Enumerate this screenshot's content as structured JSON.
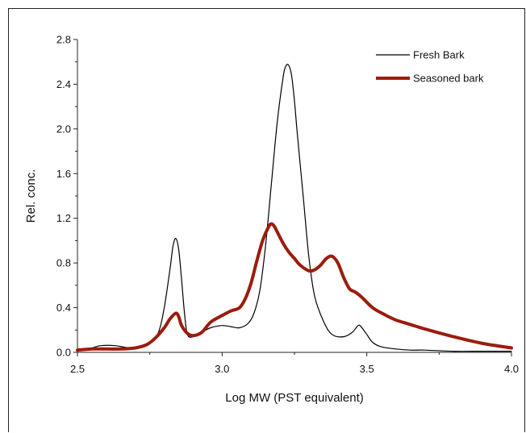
{
  "chart_data": {
    "type": "line",
    "xlabel": "Log MW (PST equivalent)",
    "ylabel": "Rel. conc.",
    "xlim": [
      2.5,
      4.0
    ],
    "ylim": [
      0.0,
      2.8
    ],
    "x_ticks": [
      "2.5",
      "3.0",
      "3.5",
      "4.0"
    ],
    "y_ticks": [
      "0.0",
      "0.4",
      "0.8",
      "1.2",
      "1.6",
      "2.0",
      "2.4",
      "2.8"
    ],
    "grid": false,
    "legend_position": "top-right",
    "series": [
      {
        "name": "Fresh Bark",
        "color": "#000000",
        "x": [
          2.5,
          2.55,
          2.58,
          2.63,
          2.68,
          2.72,
          2.75,
          2.78,
          2.8,
          2.82,
          2.83,
          2.84,
          2.85,
          2.86,
          2.87,
          2.88,
          2.9,
          2.93,
          2.96,
          3.0,
          3.03,
          3.06,
          3.09,
          3.11,
          3.13,
          3.15,
          3.17,
          3.19,
          3.21,
          3.22,
          3.23,
          3.24,
          3.25,
          3.26,
          3.28,
          3.3,
          3.32,
          3.35,
          3.38,
          3.42,
          3.45,
          3.47,
          3.48,
          3.5,
          3.52,
          3.55,
          3.6,
          3.65,
          3.7,
          3.8,
          3.9,
          4.0
        ],
        "y": [
          0.02,
          0.04,
          0.06,
          0.06,
          0.04,
          0.05,
          0.08,
          0.18,
          0.4,
          0.75,
          0.95,
          1.02,
          0.92,
          0.65,
          0.35,
          0.16,
          0.14,
          0.18,
          0.22,
          0.24,
          0.23,
          0.22,
          0.26,
          0.35,
          0.55,
          0.95,
          1.5,
          2.05,
          2.45,
          2.56,
          2.57,
          2.48,
          2.25,
          1.95,
          1.4,
          0.85,
          0.5,
          0.28,
          0.16,
          0.14,
          0.18,
          0.24,
          0.23,
          0.16,
          0.09,
          0.05,
          0.03,
          0.02,
          0.02,
          0.01,
          0.01,
          0.01
        ]
      },
      {
        "name": "Seasoned bark",
        "color": "#9b1c0c",
        "x": [
          2.5,
          2.55,
          2.6,
          2.65,
          2.7,
          2.74,
          2.77,
          2.8,
          2.82,
          2.84,
          2.85,
          2.86,
          2.88,
          2.9,
          2.93,
          2.96,
          3.0,
          3.03,
          3.06,
          3.08,
          3.1,
          3.12,
          3.14,
          3.16,
          3.17,
          3.18,
          3.19,
          3.21,
          3.23,
          3.25,
          3.27,
          3.3,
          3.32,
          3.34,
          3.36,
          3.38,
          3.4,
          3.42,
          3.44,
          3.46,
          3.48,
          3.52,
          3.56,
          3.6,
          3.65,
          3.7,
          3.8,
          3.9,
          4.0
        ],
        "y": [
          0.02,
          0.03,
          0.03,
          0.03,
          0.04,
          0.07,
          0.13,
          0.22,
          0.3,
          0.35,
          0.32,
          0.24,
          0.17,
          0.15,
          0.18,
          0.27,
          0.33,
          0.37,
          0.4,
          0.48,
          0.62,
          0.82,
          1.0,
          1.12,
          1.15,
          1.13,
          1.08,
          0.98,
          0.9,
          0.84,
          0.78,
          0.73,
          0.74,
          0.78,
          0.84,
          0.86,
          0.8,
          0.67,
          0.57,
          0.54,
          0.5,
          0.4,
          0.34,
          0.29,
          0.25,
          0.21,
          0.14,
          0.08,
          0.04
        ]
      }
    ]
  }
}
